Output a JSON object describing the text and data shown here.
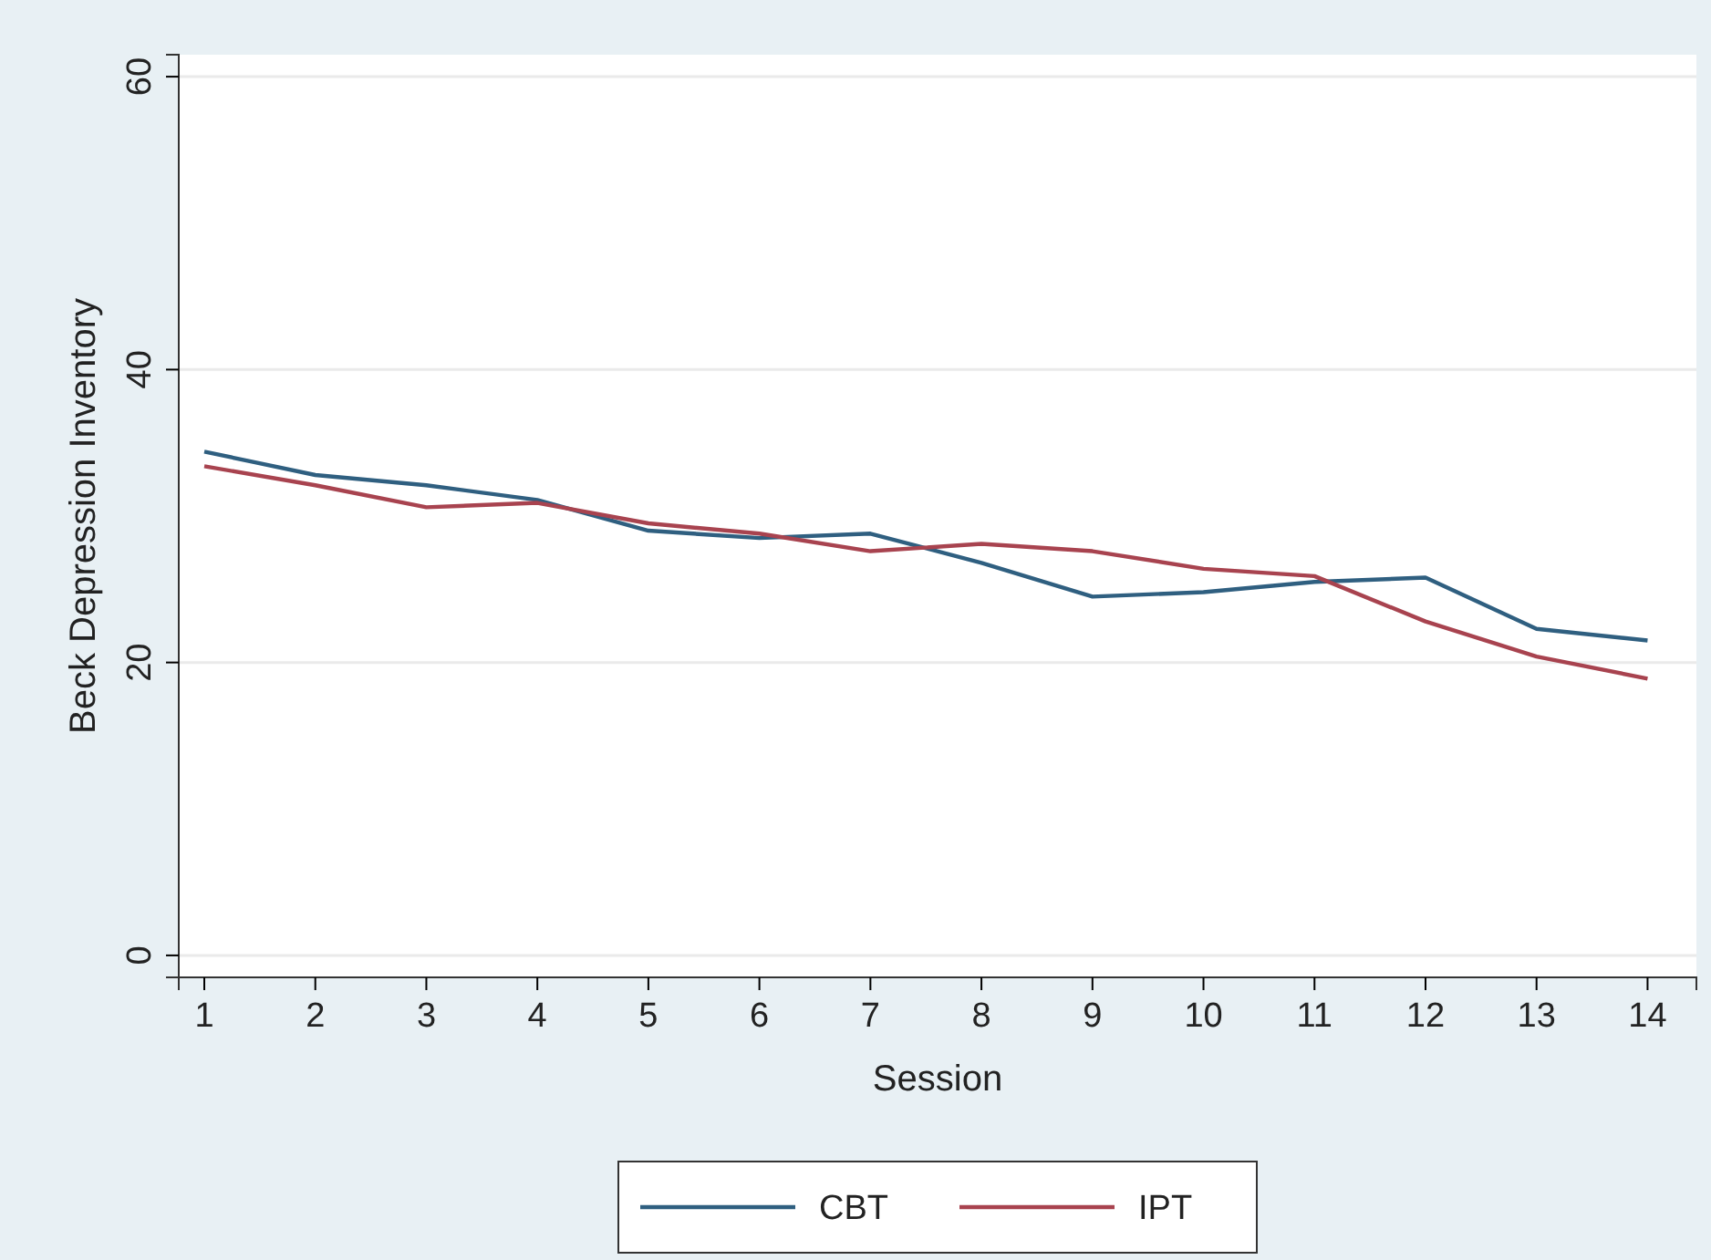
{
  "chart_data": {
    "type": "line",
    "xlabel": "Session",
    "ylabel": "Beck Depression Inventory",
    "x": [
      1,
      2,
      3,
      4,
      5,
      6,
      7,
      8,
      9,
      10,
      11,
      12,
      13,
      14
    ],
    "series": [
      {
        "name": "CBT",
        "color": "#2f5f80",
        "values": [
          34.4,
          32.8,
          32.1,
          31.1,
          29,
          28.5,
          28.8,
          26.8,
          24.5,
          24.8,
          25.5,
          25.8,
          22.3,
          21.5
        ]
      },
      {
        "name": "IPT",
        "color": "#a8434f",
        "values": [
          33.4,
          32.1,
          30.6,
          30.9,
          29.5,
          28.8,
          27.6,
          28.1,
          27.6,
          26.4,
          25.9,
          22.8,
          20.4,
          18.9
        ]
      }
    ],
    "xlim": [
      0.77,
      14.44
    ],
    "xticks": [
      1,
      2,
      3,
      4,
      5,
      6,
      7,
      8,
      9,
      10,
      11,
      12,
      13,
      14
    ],
    "ylim": [
      -1.5,
      61.5
    ],
    "yticks": [
      0,
      20,
      40,
      60
    ],
    "grid": "y",
    "legend": "bottom",
    "marker": "none",
    "line_style": "solid"
  }
}
